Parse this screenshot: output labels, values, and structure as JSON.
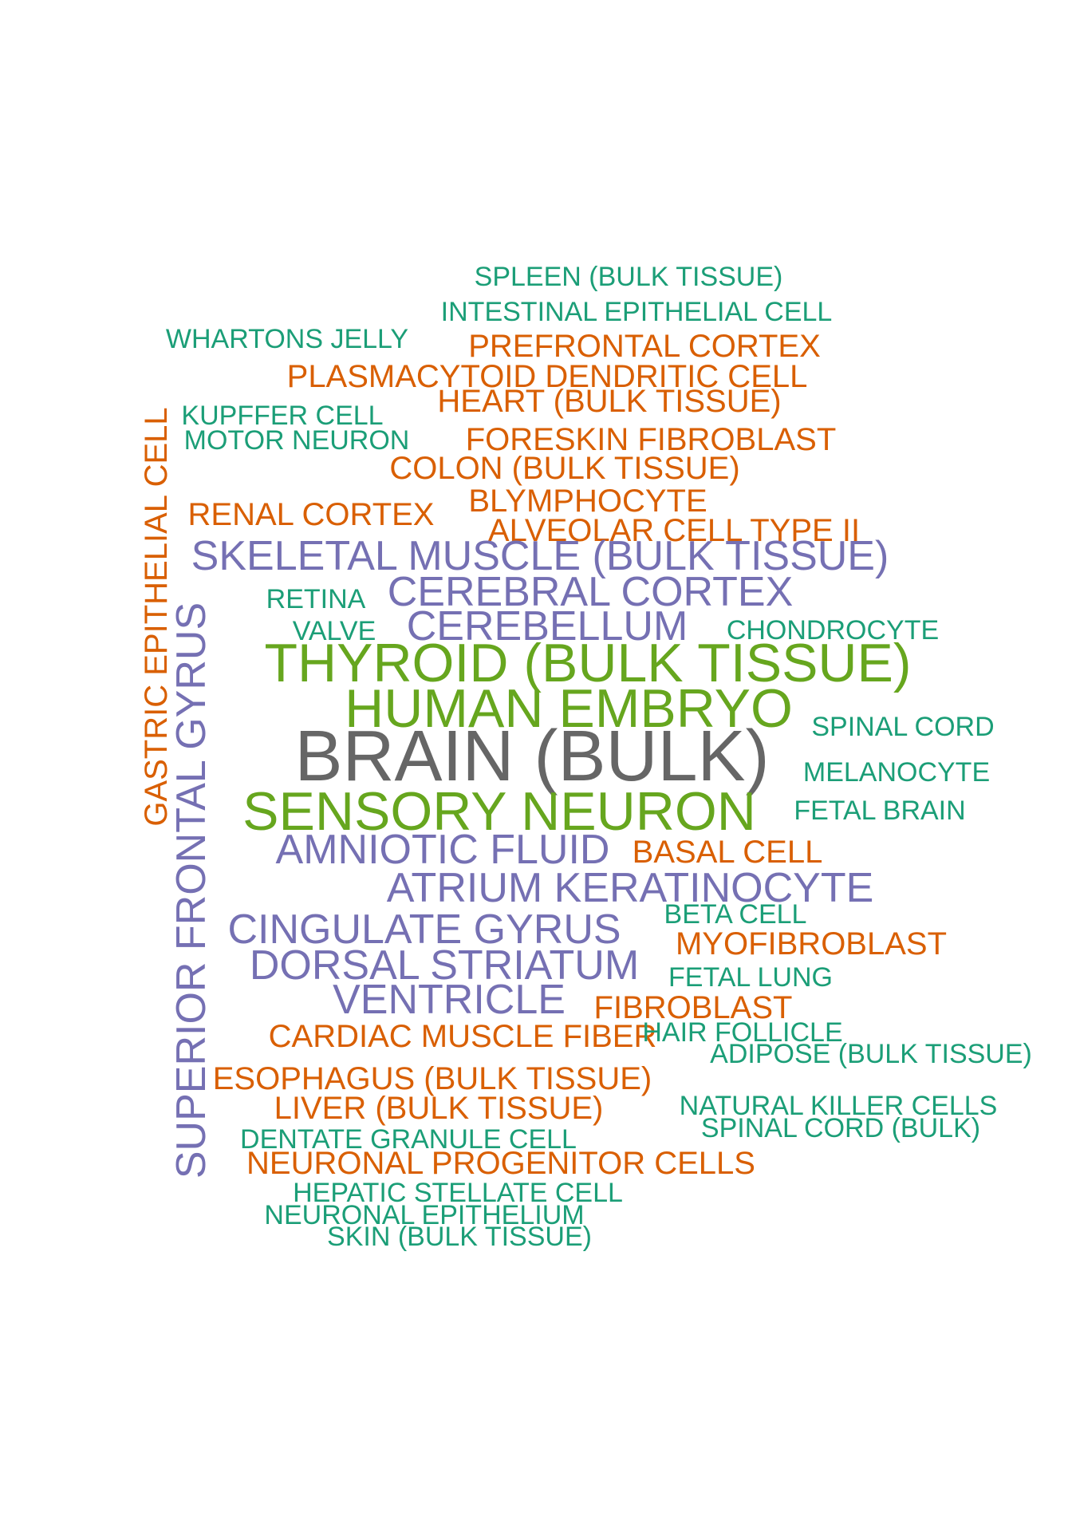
{
  "colors": {
    "green": "#1b9e77",
    "orange": "#d95f02",
    "purple": "#7570b3",
    "lime": "#66a61e",
    "grey": "#666666"
  },
  "words": [
    {
      "text": "SPLEEN (BULK TISSUE)",
      "color": "green",
      "size": "s1"
    },
    {
      "text": "INTESTINAL EPITHELIAL CELL",
      "color": "green",
      "size": "s1"
    },
    {
      "text": "WHARTONS JELLY",
      "color": "green",
      "size": "s1"
    },
    {
      "text": "PREFRONTAL CORTEX",
      "color": "orange",
      "size": "s2"
    },
    {
      "text": "PLASMACYTOID DENDRITIC CELL",
      "color": "orange",
      "size": "s2"
    },
    {
      "text": "HEART (BULK TISSUE)",
      "color": "orange",
      "size": "s2"
    },
    {
      "text": "KUPFFER CELL",
      "color": "green",
      "size": "s1"
    },
    {
      "text": "MOTOR NEURON",
      "color": "green",
      "size": "s1"
    },
    {
      "text": "FORESKIN FIBROBLAST",
      "color": "orange",
      "size": "s2"
    },
    {
      "text": "COLON (BULK TISSUE)",
      "color": "orange",
      "size": "s2"
    },
    {
      "text": "RENAL CORTEX",
      "color": "orange",
      "size": "s2"
    },
    {
      "text": "BLYMPHOCYTE",
      "color": "orange",
      "size": "s2"
    },
    {
      "text": "ALVEOLAR CELL TYPE II",
      "color": "orange",
      "size": "s2"
    },
    {
      "text": "SKELETAL MUSCLE (BULK TISSUE)",
      "color": "purple",
      "size": "s3"
    },
    {
      "text": "RETINA",
      "color": "green",
      "size": "s1"
    },
    {
      "text": "CEREBRAL CORTEX",
      "color": "purple",
      "size": "s3"
    },
    {
      "text": "VALVE",
      "color": "green",
      "size": "s1"
    },
    {
      "text": "CEREBELLUM",
      "color": "purple",
      "size": "s3"
    },
    {
      "text": "CHONDROCYTE",
      "color": "green",
      "size": "s1"
    },
    {
      "text": "THYROID (BULK TISSUE)",
      "color": "lime",
      "size": "s4"
    },
    {
      "text": "HUMAN EMBRYO",
      "color": "lime",
      "size": "s4"
    },
    {
      "text": "SPINAL CORD",
      "color": "green",
      "size": "s1"
    },
    {
      "text": "BRAIN (BULK)",
      "color": "grey",
      "size": "s5"
    },
    {
      "text": "MELANOCYTE",
      "color": "green",
      "size": "s1"
    },
    {
      "text": "SENSORY NEURON",
      "color": "lime",
      "size": "s4"
    },
    {
      "text": "FETAL BRAIN",
      "color": "green",
      "size": "s1"
    },
    {
      "text": "AMNIOTIC FLUID",
      "color": "purple",
      "size": "s3"
    },
    {
      "text": "BASAL CELL",
      "color": "orange",
      "size": "s2"
    },
    {
      "text": "ATRIUM KERATINOCYTE",
      "color": "purple",
      "size": "s3"
    },
    {
      "text": "BETA CELL",
      "color": "green",
      "size": "s1"
    },
    {
      "text": "CINGULATE GYRUS",
      "color": "purple",
      "size": "s3"
    },
    {
      "text": "MYOFIBROBLAST",
      "color": "orange",
      "size": "s2"
    },
    {
      "text": "DORSAL STRIATUM",
      "color": "purple",
      "size": "s3"
    },
    {
      "text": "FETAL LUNG",
      "color": "green",
      "size": "s1"
    },
    {
      "text": "VENTRICLE",
      "color": "purple",
      "size": "s3"
    },
    {
      "text": "FIBROBLAST",
      "color": "orange",
      "size": "s2"
    },
    {
      "text": "CARDIAC MUSCLE FIBER",
      "color": "orange",
      "size": "s2"
    },
    {
      "text": "HAIR FOLLICLE",
      "color": "green",
      "size": "s1"
    },
    {
      "text": "ADIPOSE (BULK TISSUE)",
      "color": "green",
      "size": "s1"
    },
    {
      "text": "ESOPHAGUS (BULK TISSUE)",
      "color": "orange",
      "size": "s2"
    },
    {
      "text": "NATURAL KILLER CELLS",
      "color": "green",
      "size": "s1"
    },
    {
      "text": "LIVER (BULK TISSUE)",
      "color": "orange",
      "size": "s2"
    },
    {
      "text": "SPINAL CORD (BULK)",
      "color": "green",
      "size": "s1"
    },
    {
      "text": "DENTATE GRANULE CELL",
      "color": "green",
      "size": "s1"
    },
    {
      "text": "NEURONAL PROGENITOR CELLS",
      "color": "orange",
      "size": "s2"
    },
    {
      "text": "HEPATIC STELLATE CELL",
      "color": "green",
      "size": "s1"
    },
    {
      "text": "NEURONAL EPITHELIUM",
      "color": "green",
      "size": "s1"
    },
    {
      "text": "SKIN (BULK TISSUE)",
      "color": "green",
      "size": "s1"
    },
    {
      "text": "GASTRIC EPITHELIAL CELL",
      "color": "orange",
      "size": "s2",
      "rotated": true
    },
    {
      "text": "SUPERIOR FRONTAL GYRUS",
      "color": "purple",
      "size": "s3",
      "rotated": true
    }
  ]
}
